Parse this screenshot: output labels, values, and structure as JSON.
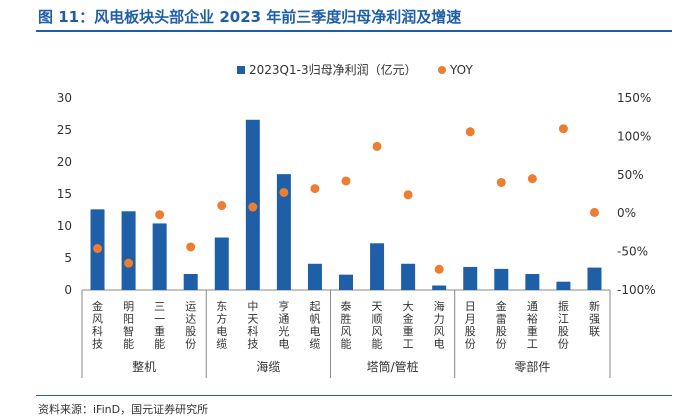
{
  "header": {
    "title": "图 11：风电板块头部企业 2023 年前三季度归母净利润及增速"
  },
  "footer": {
    "source": "资料来源：iFinD，国元证券研究所"
  },
  "chart_data": {
    "type": "bar",
    "title": "",
    "categories": [
      "金风科技",
      "明阳智能",
      "三一重能",
      "运达股份",
      "东方电缆",
      "中天科技",
      "亨通光电",
      "起帆电缆",
      "泰胜风能",
      "天顺风能",
      "大金重工",
      "海力风电",
      "日月股份",
      "金雷股份",
      "通裕重工",
      "振江股份",
      "新强联"
    ],
    "groups": [
      {
        "name": "整机",
        "categories": [
          "金风科技",
          "明阳智能",
          "三一重能",
          "运达股份"
        ]
      },
      {
        "name": "海缆",
        "categories": [
          "东方电缆",
          "中天科技",
          "亨通光电",
          "起帆电缆"
        ]
      },
      {
        "name": "塔筒/管桩",
        "categories": [
          "泰胜风能",
          "天顺风能",
          "大金重工",
          "海力风电"
        ]
      },
      {
        "name": "零部件",
        "categories": [
          "日月股份",
          "金雷股份",
          "通裕重工",
          "振江股份",
          "新强联"
        ]
      }
    ],
    "series": [
      {
        "name": "2023Q1-3归母净利润（亿元）",
        "type": "bar",
        "axis": "left",
        "color": "#1f5fa8",
        "values": [
          12.6,
          12.3,
          10.4,
          2.5,
          8.2,
          26.6,
          18.1,
          4.1,
          2.4,
          7.3,
          4.1,
          0.7,
          3.6,
          3.3,
          2.5,
          1.3,
          3.5
        ]
      },
      {
        "name": "YOY",
        "type": "scatter",
        "axis": "right",
        "color": "#ed7d31",
        "values": [
          -46,
          -65,
          -2,
          -44,
          10,
          8,
          27,
          32,
          42,
          87,
          24,
          -73,
          106,
          40,
          45,
          110,
          1
        ]
      }
    ],
    "left_axis": {
      "min": 0,
      "max": 30,
      "ticks": [
        "0",
        "5",
        "10",
        "15",
        "20",
        "25",
        "30"
      ]
    },
    "right_axis": {
      "min": -100,
      "max": 150,
      "ticks": [
        "-100%",
        "-50%",
        "0%",
        "50%",
        "100%",
        "150%"
      ]
    },
    "legend_position": "top"
  }
}
